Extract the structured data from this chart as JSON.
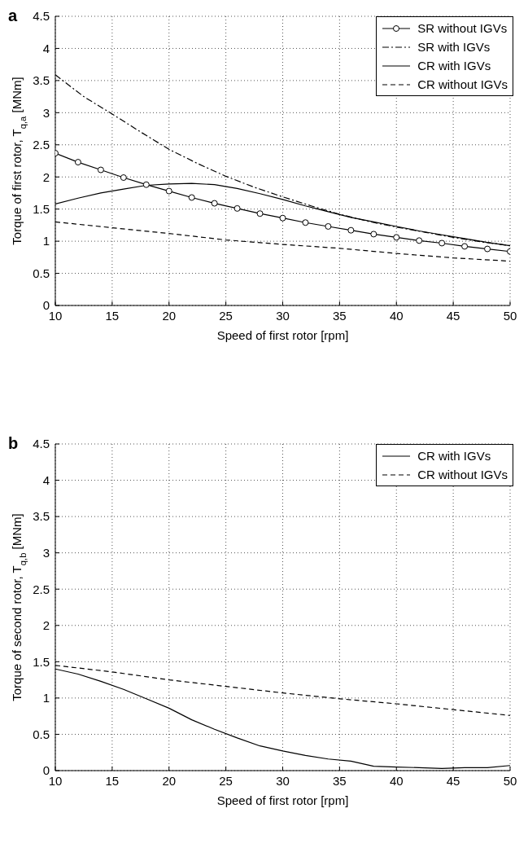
{
  "chart_data": [
    {
      "type": "line",
      "title": "a",
      "xlabel": "Speed of first rotor [rpm]",
      "ylabel": "Torque of first rotor, T$_{q,a}$ [MNm]",
      "xlim": [
        10,
        50
      ],
      "ylim": [
        0,
        4.5
      ],
      "xticks": [
        10,
        15,
        20,
        25,
        30,
        35,
        40,
        45,
        50
      ],
      "yticks": [
        0,
        0.5,
        1,
        1.5,
        2,
        2.5,
        3,
        3.5,
        4,
        4.5
      ],
      "grid": true,
      "legend": "top right",
      "series": [
        {
          "name": "SR without IGVs",
          "color": "#000000",
          "marker": "circle",
          "line_style": "solid",
          "x": [
            10,
            12,
            14,
            16,
            18,
            20,
            22,
            24,
            26,
            28,
            30,
            32,
            34,
            36,
            38,
            40,
            42,
            44,
            46,
            48,
            50
          ],
          "values": [
            2.37,
            2.23,
            2.11,
            1.99,
            1.88,
            1.78,
            1.68,
            1.59,
            1.51,
            1.43,
            1.36,
            1.29,
            1.23,
            1.17,
            1.11,
            1.06,
            1.01,
            0.97,
            0.92,
            0.88,
            0.84
          ]
        },
        {
          "name": "SR with IGVs",
          "color": "#000000",
          "marker": "none",
          "line_style": "dashdot",
          "x": [
            10,
            12.5,
            15,
            17.5,
            20,
            22.5,
            25,
            27.5,
            30,
            32.5,
            35,
            37.5,
            40,
            42.5,
            45,
            47.5,
            50
          ],
          "values": [
            3.59,
            3.25,
            2.98,
            2.7,
            2.43,
            2.21,
            2.01,
            1.84,
            1.69,
            1.55,
            1.42,
            1.31,
            1.22,
            1.14,
            1.06,
            0.99,
            0.93
          ]
        },
        {
          "name": "CR with IGVs",
          "color": "#000000",
          "marker": "none",
          "line_style": "solid",
          "x": [
            10,
            12,
            14,
            16,
            18,
            20,
            22,
            24,
            26,
            28,
            30,
            32,
            34,
            36,
            38,
            40,
            42,
            44,
            46,
            48,
            50
          ],
          "values": [
            1.58,
            1.67,
            1.75,
            1.81,
            1.87,
            1.89,
            1.9,
            1.88,
            1.82,
            1.74,
            1.65,
            1.55,
            1.46,
            1.37,
            1.3,
            1.23,
            1.16,
            1.1,
            1.04,
            0.98,
            0.93
          ]
        },
        {
          "name": "CR without IGVs",
          "color": "#000000",
          "marker": "none",
          "line_style": "dashed",
          "x": [
            10,
            15,
            20,
            25,
            30,
            35,
            40,
            45,
            50
          ],
          "values": [
            1.3,
            1.21,
            1.12,
            1.02,
            0.95,
            0.89,
            0.81,
            0.74,
            0.69
          ]
        }
      ]
    },
    {
      "type": "line",
      "title": "b",
      "xlabel": "Speed of first rotor [rpm]",
      "ylabel": "Torque of second rotor, T$_{q,b}$ [MNm]",
      "xlim": [
        10,
        50
      ],
      "ylim": [
        0,
        4.5
      ],
      "xticks": [
        10,
        15,
        20,
        25,
        30,
        35,
        40,
        45,
        50
      ],
      "yticks": [
        0,
        0.5,
        1,
        1.5,
        2,
        2.5,
        3,
        3.5,
        4,
        4.5
      ],
      "grid": true,
      "legend": "top right",
      "series": [
        {
          "name": "CR with IGVs",
          "color": "#000000",
          "marker": "none",
          "line_style": "solid",
          "x": [
            10,
            12,
            14,
            16,
            18,
            20,
            22,
            24,
            26,
            28,
            30,
            32,
            34,
            36,
            38,
            40,
            42,
            44,
            46,
            48,
            50
          ],
          "values": [
            1.4,
            1.33,
            1.23,
            1.12,
            0.99,
            0.86,
            0.7,
            0.57,
            0.45,
            0.34,
            0.27,
            0.21,
            0.16,
            0.13,
            0.06,
            0.05,
            0.04,
            0.03,
            0.04,
            0.04,
            0.07
          ]
        },
        {
          "name": "CR without IGVs",
          "color": "#000000",
          "marker": "none",
          "line_style": "dashed",
          "x": [
            10,
            15,
            20,
            25,
            30,
            35,
            40,
            45,
            50
          ],
          "values": [
            1.45,
            1.36,
            1.25,
            1.16,
            1.07,
            0.99,
            0.92,
            0.84,
            0.76
          ]
        }
      ]
    }
  ]
}
